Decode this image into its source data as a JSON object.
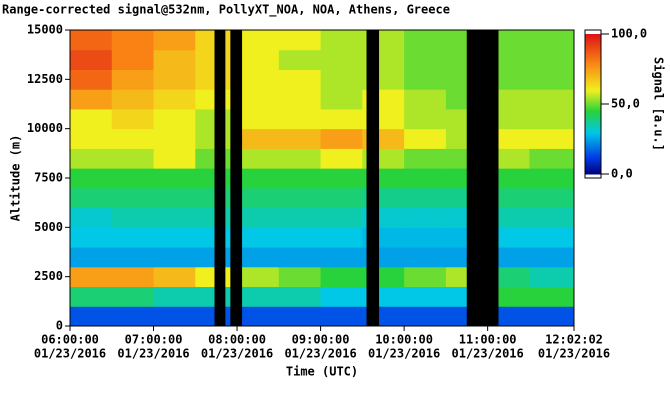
{
  "chart_data": {
    "type": "heatmap",
    "title": "Range-corrected signal@532nm, PollyXT_NOA, NOA, Athens, Greece",
    "xlabel": "Time (UTC)",
    "ylabel": "Altitude (m)",
    "colorbar_label": "Signal [a.u.]",
    "xlim": [
      6,
      12.0339
    ],
    "ylim": [
      0,
      15000
    ],
    "clim": [
      0,
      100
    ],
    "xticks": [
      {
        "value": 6,
        "label": "06:00:00",
        "sublabel": "01/23/2016"
      },
      {
        "value": 7,
        "label": "07:00:00",
        "sublabel": "01/23/2016"
      },
      {
        "value": 8,
        "label": "08:00:00",
        "sublabel": "01/23/2016"
      },
      {
        "value": 9,
        "label": "09:00:00",
        "sublabel": "01/23/2016"
      },
      {
        "value": 10,
        "label": "10:00:00",
        "sublabel": "01/23/2016"
      },
      {
        "value": 11,
        "label": "11:00:00",
        "sublabel": "01/23/2016"
      },
      {
        "value": 12.0339,
        "label": "12:02:02",
        "sublabel": "01/23/2016"
      }
    ],
    "yticks": [
      0,
      2500,
      5000,
      7500,
      10000,
      12500,
      15000
    ],
    "cticks": [
      {
        "value": 0,
        "label": "0,0"
      },
      {
        "value": 50,
        "label": "50,0"
      },
      {
        "value": 100,
        "label": "100,0"
      }
    ],
    "x_edges": [
      6,
      6.5,
      7,
      7.5,
      8,
      8.5,
      9,
      9.5,
      10,
      10.5,
      11,
      11.5,
      12.0339
    ],
    "y_edges": [
      0,
      1000,
      2000,
      3000,
      4000,
      5000,
      6000,
      7000,
      8000,
      9000,
      10000,
      11000,
      12000,
      13000,
      14000,
      15000
    ],
    "z": [
      [
        15,
        15,
        15,
        15,
        15,
        15,
        15,
        15,
        15,
        15,
        15,
        15
      ],
      [
        40,
        40,
        35,
        35,
        35,
        35,
        30,
        30,
        30,
        30,
        45,
        45
      ],
      [
        75,
        75,
        70,
        60,
        55,
        50,
        45,
        45,
        50,
        55,
        40,
        35
      ],
      [
        25,
        25,
        25,
        25,
        25,
        25,
        25,
        25,
        25,
        25,
        25,
        25
      ],
      [
        30,
        30,
        30,
        30,
        30,
        30,
        30,
        28,
        28,
        28,
        30,
        30
      ],
      [
        32,
        35,
        35,
        35,
        35,
        35,
        35,
        32,
        32,
        32,
        35,
        35
      ],
      [
        40,
        40,
        40,
        40,
        40,
        40,
        40,
        38,
        38,
        38,
        40,
        40
      ],
      [
        45,
        45,
        45,
        45,
        45,
        45,
        45,
        45,
        45,
        45,
        45,
        45
      ],
      [
        55,
        55,
        60,
        50,
        55,
        55,
        60,
        55,
        50,
        50,
        55,
        50
      ],
      [
        60,
        60,
        60,
        55,
        70,
        70,
        75,
        70,
        60,
        55,
        60,
        60
      ],
      [
        60,
        65,
        60,
        55,
        60,
        60,
        60,
        60,
        55,
        55,
        55,
        55
      ],
      [
        75,
        70,
        65,
        60,
        60,
        60,
        55,
        60,
        55,
        50,
        55,
        55
      ],
      [
        85,
        75,
        70,
        65,
        60,
        60,
        55,
        55,
        50,
        50,
        50,
        50
      ],
      [
        90,
        80,
        70,
        65,
        60,
        55,
        55,
        55,
        50,
        50,
        50,
        50
      ],
      [
        85,
        80,
        75,
        65,
        60,
        60,
        55,
        55,
        50,
        50,
        50,
        50
      ]
    ],
    "gaps": [
      [
        7.73,
        7.86
      ],
      [
        7.92,
        8.06
      ],
      [
        9.55,
        9.7
      ],
      [
        10.75,
        11.13
      ]
    ],
    "gap_color": "#000000"
  }
}
